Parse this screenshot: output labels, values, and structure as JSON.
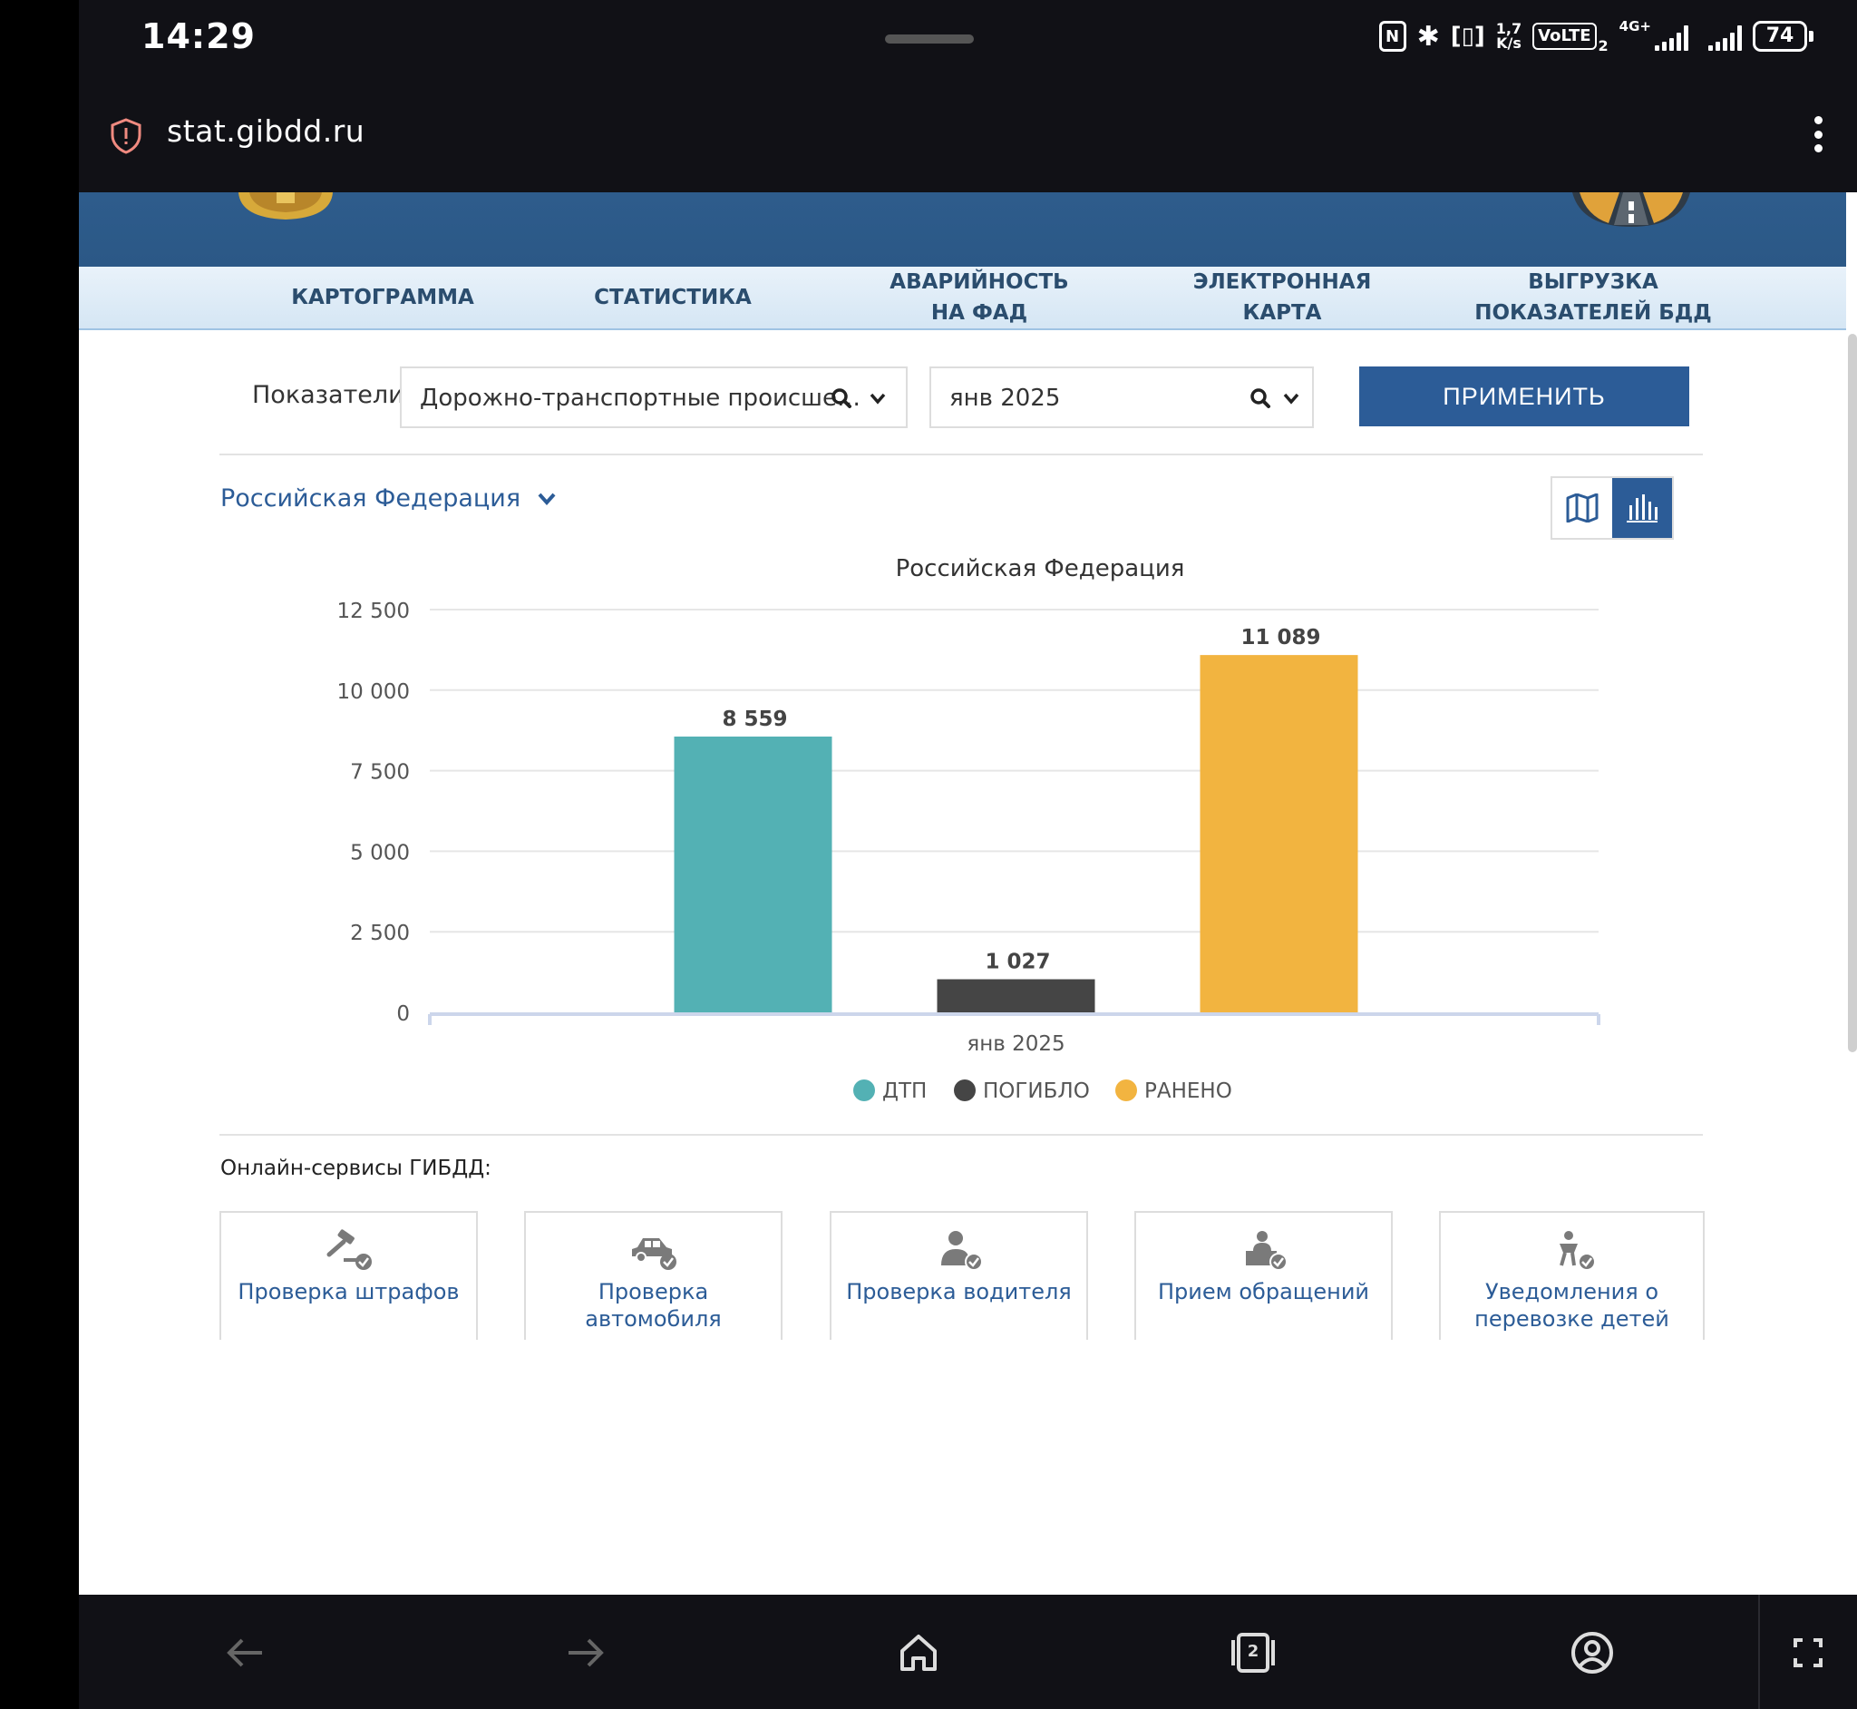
{
  "status_bar": {
    "time": "14:29",
    "net_speed": "1,7\nK/s",
    "volte": "VoLTE",
    "sim2": "2",
    "net_type": "4G+",
    "battery": "74"
  },
  "address_bar": {
    "url": "stat.gibdd.ru"
  },
  "nav": {
    "items": [
      {
        "label": "КАРТОГРАММА"
      },
      {
        "label": "СТАТИСТИКА"
      },
      {
        "label": "АВАРИЙНОСТЬ\nНА ФАД"
      },
      {
        "label": "ЭЛЕКТРОННАЯ\nКАРТА"
      },
      {
        "label": "ВЫГРУЗКА\nПОКАЗАТЕЛЕЙ БДД"
      }
    ]
  },
  "filters": {
    "indicators_label": "Показатели",
    "indicator_value": "Дорожно-транспортные происше…",
    "period_value": "янв 2025",
    "apply_label": "ПРИМЕНИТЬ"
  },
  "region_selector": {
    "label": "Российская Федерация"
  },
  "view_toggle": {
    "active": "chart",
    "options": [
      "map-icon",
      "bar-chart-icon"
    ]
  },
  "chart_data": {
    "type": "bar",
    "title": "Российская Федерация",
    "categories": [
      "янв 2025"
    ],
    "series": [
      {
        "name": "ДТП",
        "values": [
          8559
        ],
        "value_label": "8 559",
        "color": "#53b1b4"
      },
      {
        "name": "ПОГИБЛО",
        "values": [
          1027
        ],
        "value_label": "1 027",
        "color": "#454545"
      },
      {
        "name": "РАНЕНО",
        "values": [
          11089
        ],
        "value_label": "11 089",
        "color": "#f2b440"
      }
    ],
    "yticks": [
      0,
      2500,
      5000,
      7500,
      10000,
      12500
    ],
    "ytick_labels": [
      "0",
      "2 500",
      "5 000",
      "7 500",
      "10 000",
      "12 500"
    ],
    "ylim": [
      0,
      12500
    ],
    "grid": true,
    "legend_position": "bottom"
  },
  "services": {
    "title": "Онлайн-сервисы ГИБДД:",
    "items": [
      {
        "label": "Проверка штрафов",
        "icon": "gavel-check-icon"
      },
      {
        "label": "Проверка автомобиля",
        "icon": "car-check-icon"
      },
      {
        "label": "Проверка водителя",
        "icon": "driver-check-icon"
      },
      {
        "label": "Прием обращений",
        "icon": "reception-desk-icon"
      },
      {
        "label": "Уведомления о перевозке детей",
        "icon": "child-check-icon"
      }
    ]
  },
  "bottom_nav": {
    "tabs_count": "2"
  },
  "colors": {
    "brand_blue": "#2c5c97",
    "header_blue": "#2e5c8c"
  }
}
